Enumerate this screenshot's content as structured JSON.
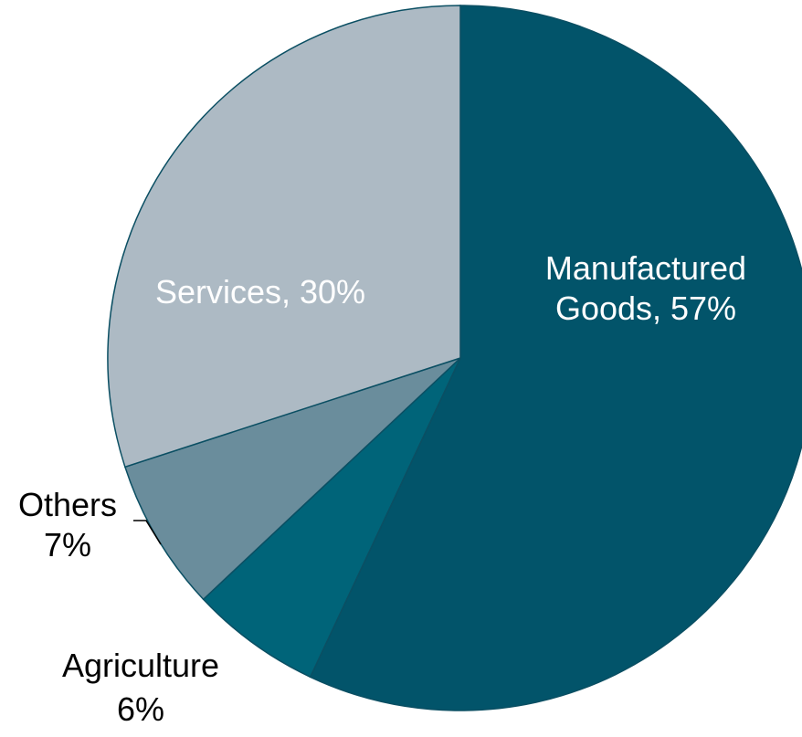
{
  "chart_data": {
    "type": "pie",
    "title": "",
    "slices": [
      {
        "label": "Manufactured Goods",
        "value": 57,
        "display": [
          "Manufactured",
          "Goods, 57%"
        ],
        "color": "#02546a",
        "label_color": "#ffffff"
      },
      {
        "label": "Agriculture",
        "value": 6,
        "display": [
          "Agriculture",
          "6%"
        ],
        "color": "#006479",
        "label_color": "#000000"
      },
      {
        "label": "Others",
        "value": 7,
        "display": [
          "Others",
          "7%"
        ],
        "color": "#6a8d9c",
        "label_color": "#000000"
      },
      {
        "label": "Services",
        "value": 30,
        "display": [
          "Services, 30%"
        ],
        "color": "#adbac4",
        "label_color": "#ffffff"
      }
    ],
    "start_angle": "12 o'clock",
    "direction": "clockwise",
    "slice_border_color": "#0b4f63",
    "legend": "none"
  }
}
